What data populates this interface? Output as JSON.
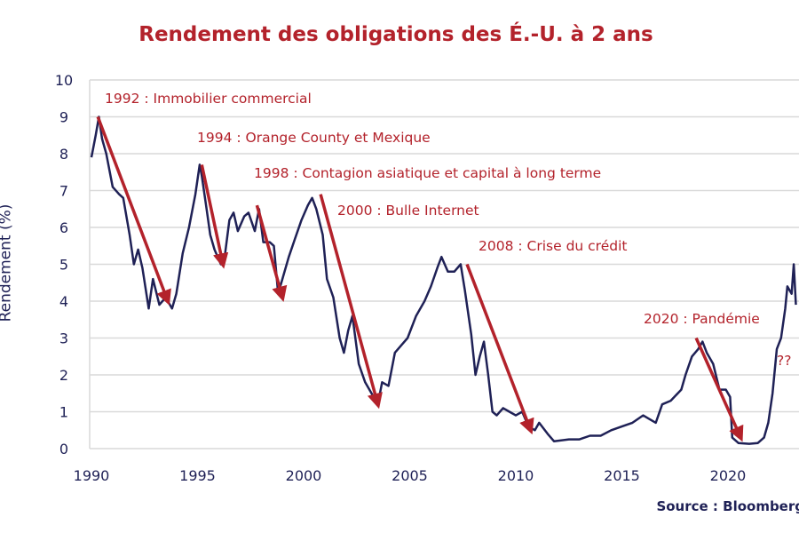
{
  "chart_data": {
    "type": "line",
    "title": "Rendement des obligations des É.-U. à 2 ans",
    "ylabel": "Rendement (%)",
    "xlabel": "",
    "source": "Source : Bloomberg",
    "xlim": [
      1990,
      2023.3
    ],
    "ylim": [
      0,
      10
    ],
    "x_ticks": [
      "1990",
      "1995",
      "2000",
      "2005",
      "2010",
      "2015",
      "2020"
    ],
    "y_ticks": [
      "0",
      "1",
      "2",
      "3",
      "4",
      "5",
      "6",
      "7",
      "8",
      "9",
      "10"
    ],
    "grid": true,
    "colors": {
      "line": "#1f2156",
      "arrows": "#b3222b",
      "title": "#b3222b",
      "grid": "#d9d9d9"
    },
    "series": [
      {
        "points": [
          [
            1990.0,
            7.9
          ],
          [
            1990.2,
            8.5
          ],
          [
            1990.35,
            9.0
          ],
          [
            1990.5,
            8.4
          ],
          [
            1990.7,
            8.0
          ],
          [
            1991.0,
            7.1
          ],
          [
            1991.3,
            6.9
          ],
          [
            1991.5,
            6.8
          ],
          [
            1991.8,
            5.8
          ],
          [
            1992.0,
            5.0
          ],
          [
            1992.2,
            5.4
          ],
          [
            1992.4,
            4.9
          ],
          [
            1992.7,
            3.8
          ],
          [
            1992.9,
            4.6
          ],
          [
            1993.2,
            3.9
          ],
          [
            1993.5,
            4.1
          ],
          [
            1993.8,
            3.8
          ],
          [
            1994.0,
            4.2
          ],
          [
            1994.3,
            5.3
          ],
          [
            1994.6,
            6.0
          ],
          [
            1994.9,
            6.9
          ],
          [
            1995.1,
            7.7
          ],
          [
            1995.2,
            7.4
          ],
          [
            1995.4,
            6.6
          ],
          [
            1995.6,
            5.8
          ],
          [
            1995.8,
            5.4
          ],
          [
            1996.1,
            5.0
          ],
          [
            1996.3,
            5.3
          ],
          [
            1996.5,
            6.2
          ],
          [
            1996.7,
            6.4
          ],
          [
            1996.9,
            5.9
          ],
          [
            1997.2,
            6.3
          ],
          [
            1997.4,
            6.4
          ],
          [
            1997.7,
            5.9
          ],
          [
            1997.9,
            6.5
          ],
          [
            1998.1,
            5.6
          ],
          [
            1998.4,
            5.6
          ],
          [
            1998.6,
            5.5
          ],
          [
            1998.8,
            4.2
          ],
          [
            1999.0,
            4.6
          ],
          [
            1999.3,
            5.2
          ],
          [
            1999.6,
            5.7
          ],
          [
            1999.9,
            6.2
          ],
          [
            2000.2,
            6.6
          ],
          [
            2000.4,
            6.8
          ],
          [
            2000.6,
            6.5
          ],
          [
            2000.9,
            5.8
          ],
          [
            2001.1,
            4.6
          ],
          [
            2001.4,
            4.1
          ],
          [
            2001.7,
            3.0
          ],
          [
            2001.9,
            2.6
          ],
          [
            2002.1,
            3.2
          ],
          [
            2002.3,
            3.6
          ],
          [
            2002.6,
            2.3
          ],
          [
            2002.9,
            1.8
          ],
          [
            2003.2,
            1.5
          ],
          [
            2003.5,
            1.2
          ],
          [
            2003.7,
            1.8
          ],
          [
            2004.0,
            1.7
          ],
          [
            2004.3,
            2.6
          ],
          [
            2004.6,
            2.8
          ],
          [
            2004.9,
            3.0
          ],
          [
            2005.3,
            3.6
          ],
          [
            2005.7,
            4.0
          ],
          [
            2006.0,
            4.4
          ],
          [
            2006.3,
            4.9
          ],
          [
            2006.5,
            5.2
          ],
          [
            2006.8,
            4.8
          ],
          [
            2007.1,
            4.8
          ],
          [
            2007.4,
            5.0
          ],
          [
            2007.6,
            4.3
          ],
          [
            2007.9,
            3.1
          ],
          [
            2008.1,
            2.0
          ],
          [
            2008.3,
            2.5
          ],
          [
            2008.5,
            2.9
          ],
          [
            2008.7,
            2.0
          ],
          [
            2008.9,
            1.0
          ],
          [
            2009.1,
            0.9
          ],
          [
            2009.4,
            1.1
          ],
          [
            2009.7,
            1.0
          ],
          [
            2010.0,
            0.9
          ],
          [
            2010.3,
            1.0
          ],
          [
            2010.6,
            0.6
          ],
          [
            2010.9,
            0.5
          ],
          [
            2011.1,
            0.7
          ],
          [
            2011.5,
            0.4
          ],
          [
            2011.8,
            0.2
          ],
          [
            2012.5,
            0.25
          ],
          [
            2013.0,
            0.25
          ],
          [
            2013.5,
            0.35
          ],
          [
            2014.0,
            0.35
          ],
          [
            2014.5,
            0.5
          ],
          [
            2015.0,
            0.6
          ],
          [
            2015.5,
            0.7
          ],
          [
            2016.0,
            0.9
          ],
          [
            2016.3,
            0.8
          ],
          [
            2016.6,
            0.7
          ],
          [
            2016.9,
            1.2
          ],
          [
            2017.3,
            1.3
          ],
          [
            2017.8,
            1.6
          ],
          [
            2018.0,
            2.0
          ],
          [
            2018.3,
            2.5
          ],
          [
            2018.6,
            2.7
          ],
          [
            2018.8,
            2.9
          ],
          [
            2019.0,
            2.6
          ],
          [
            2019.3,
            2.3
          ],
          [
            2019.6,
            1.6
          ],
          [
            2019.9,
            1.6
          ],
          [
            2020.1,
            1.4
          ],
          [
            2020.2,
            0.3
          ],
          [
            2020.5,
            0.15
          ],
          [
            2021.0,
            0.13
          ],
          [
            2021.4,
            0.15
          ],
          [
            2021.7,
            0.3
          ],
          [
            2021.9,
            0.7
          ],
          [
            2022.1,
            1.5
          ],
          [
            2022.3,
            2.7
          ],
          [
            2022.5,
            3.0
          ],
          [
            2022.7,
            3.8
          ],
          [
            2022.8,
            4.4
          ],
          [
            2022.9,
            4.3
          ],
          [
            2023.0,
            4.2
          ],
          [
            2023.1,
            5.0
          ],
          [
            2023.2,
            3.9
          ]
        ]
      }
    ],
    "annotations": [
      {
        "text": "1992 : Immobilier commercial",
        "arrow_from": [
          1990.3,
          9.0
        ],
        "arrow_to": [
          1993.6,
          4.0
        ]
      },
      {
        "text": "1994 : Orange County et Mexique",
        "arrow_from": [
          1995.2,
          7.7
        ],
        "arrow_to": [
          1996.2,
          5.0
        ]
      },
      {
        "text": "1998 : Contagion asiatique et capital à long terme",
        "arrow_from": [
          1997.8,
          6.6
        ],
        "arrow_to": [
          1999.0,
          4.1
        ]
      },
      {
        "text": "2000 : Bulle Internet",
        "arrow_from": [
          2000.8,
          6.9
        ],
        "arrow_to": [
          2003.5,
          1.2
        ]
      },
      {
        "text": "2008 : Crise du crédit",
        "arrow_from": [
          2007.7,
          5.0
        ],
        "arrow_to": [
          2010.7,
          0.5
        ]
      },
      {
        "text": "2020 : Pandémie",
        "arrow_from": [
          2018.5,
          3.0
        ],
        "arrow_to": [
          2020.6,
          0.3
        ]
      },
      {
        "text": "??"
      }
    ]
  }
}
